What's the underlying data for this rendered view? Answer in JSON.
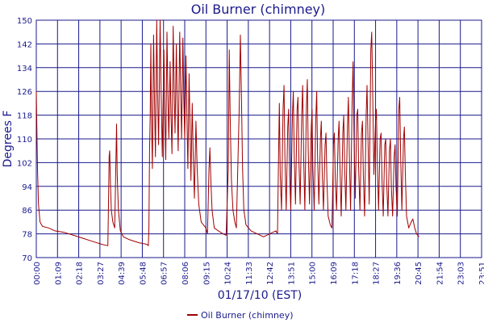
{
  "chart_data": {
    "type": "line",
    "title": "Oil Burner (chimney)",
    "xlabel": "01/17/10 (EST)",
    "ylabel": "Degrees F",
    "x_tick_labels": [
      "00:00",
      "01:09",
      "02:18",
      "03:27",
      "04:39",
      "05:48",
      "06:57",
      "08:06",
      "09:15",
      "10:24",
      "11:33",
      "12:42",
      "13:51",
      "15:00",
      "16:09",
      "17:18",
      "18:27",
      "19:36",
      "20:45",
      "21:54",
      "23:03",
      "23:51"
    ],
    "x_range_minutes": [
      0,
      1431
    ],
    "xlim_labels": [
      "00:00",
      "23:51"
    ],
    "y_ticks": [
      70,
      78,
      86,
      94,
      102,
      110,
      118,
      126,
      134,
      142,
      150
    ],
    "ylim": [
      70,
      150
    ],
    "grid": true,
    "legend_position": "bottom",
    "series": [
      {
        "name": "Oil Burner (chimney)",
        "color": "#a00000",
        "points": [
          [
            0,
            126
          ],
          [
            2,
            112
          ],
          [
            4,
            100
          ],
          [
            7,
            88
          ],
          [
            12,
            82
          ],
          [
            20,
            80.5
          ],
          [
            40,
            80
          ],
          [
            60,
            79
          ],
          [
            90,
            78.5
          ],
          [
            120,
            77.5
          ],
          [
            150,
            76.5
          ],
          [
            180,
            75.5
          ],
          [
            210,
            74.5
          ],
          [
            230,
            74
          ],
          [
            232,
            88
          ],
          [
            234,
            104
          ],
          [
            236,
            106
          ],
          [
            238,
            96
          ],
          [
            241,
            86
          ],
          [
            246,
            82
          ],
          [
            252,
            80
          ],
          [
            256,
            104
          ],
          [
            258,
            115
          ],
          [
            260,
            98
          ],
          [
            264,
            86
          ],
          [
            270,
            79
          ],
          [
            280,
            77
          ],
          [
            300,
            76
          ],
          [
            330,
            75
          ],
          [
            355,
            74.5
          ],
          [
            360,
            74
          ],
          [
            362,
            80
          ],
          [
            364,
            106
          ],
          [
            366,
            118
          ],
          [
            368,
            142
          ],
          [
            370,
            120
          ],
          [
            373,
            100
          ],
          [
            377,
            145
          ],
          [
            380,
            122
          ],
          [
            383,
            104
          ],
          [
            387,
            150
          ],
          [
            390,
            125
          ],
          [
            393,
            108
          ],
          [
            398,
            150
          ],
          [
            401,
            126
          ],
          [
            405,
            104
          ],
          [
            410,
            140
          ],
          [
            413,
            120
          ],
          [
            416,
            103
          ],
          [
            420,
            146
          ],
          [
            423,
            124
          ],
          [
            426,
            110
          ],
          [
            430,
            136
          ],
          [
            433,
            118
          ],
          [
            436,
            105
          ],
          [
            440,
            148
          ],
          [
            443,
            126
          ],
          [
            446,
            112
          ],
          [
            450,
            142
          ],
          [
            453,
            122
          ],
          [
            456,
            106
          ],
          [
            461,
            146
          ],
          [
            464,
            126
          ],
          [
            467,
            110
          ],
          [
            471,
            144
          ],
          [
            474,
            124
          ],
          [
            477,
            110
          ],
          [
            481,
            138
          ],
          [
            484,
            118
          ],
          [
            487,
            100
          ],
          [
            491,
            132
          ],
          [
            494,
            114
          ],
          [
            497,
            96
          ],
          [
            501,
            122
          ],
          [
            504,
            106
          ],
          [
            508,
            90
          ],
          [
            513,
            116
          ],
          [
            517,
            100
          ],
          [
            522,
            88
          ],
          [
            530,
            82
          ],
          [
            545,
            80
          ],
          [
            550,
            78
          ],
          [
            555,
            100
          ],
          [
            558,
            107
          ],
          [
            561,
            96
          ],
          [
            565,
            86
          ],
          [
            572,
            80
          ],
          [
            585,
            79
          ],
          [
            600,
            78
          ],
          [
            610,
            77.5
          ],
          [
            617,
            100
          ],
          [
            620,
            140
          ],
          [
            623,
            118
          ],
          [
            627,
            96
          ],
          [
            632,
            86
          ],
          [
            638,
            82
          ],
          [
            643,
            80
          ],
          [
            652,
            120
          ],
          [
            656,
            145
          ],
          [
            659,
            126
          ],
          [
            663,
            100
          ],
          [
            667,
            86
          ],
          [
            674,
            81
          ],
          [
            690,
            79
          ],
          [
            710,
            78
          ],
          [
            730,
            77
          ],
          [
            750,
            78
          ],
          [
            770,
            79
          ],
          [
            775,
            78
          ],
          [
            778,
            100
          ],
          [
            781,
            122
          ],
          [
            784,
            98
          ],
          [
            788,
            86
          ],
          [
            793,
            120
          ],
          [
            796,
            128
          ],
          [
            799,
            104
          ],
          [
            803,
            86
          ],
          [
            808,
            114
          ],
          [
            811,
            120
          ],
          [
            814,
            98
          ],
          [
            818,
            86
          ],
          [
            823,
            118
          ],
          [
            826,
            126
          ],
          [
            829,
            104
          ],
          [
            833,
            88
          ],
          [
            838,
            120
          ],
          [
            841,
            124
          ],
          [
            844,
            102
          ],
          [
            848,
            88
          ],
          [
            853,
            118
          ],
          [
            856,
            128
          ],
          [
            859,
            104
          ],
          [
            863,
            86
          ],
          [
            868,
            120
          ],
          [
            871,
            130
          ],
          [
            874,
            106
          ],
          [
            878,
            88
          ],
          [
            883,
            112
          ],
          [
            886,
            120
          ],
          [
            889,
            100
          ],
          [
            893,
            86
          ],
          [
            898,
            116
          ],
          [
            901,
            126
          ],
          [
            904,
            104
          ],
          [
            908,
            88
          ],
          [
            913,
            110
          ],
          [
            916,
            116
          ],
          [
            919,
            98
          ],
          [
            923,
            86
          ],
          [
            928,
            108
          ],
          [
            931,
            112
          ],
          [
            934,
            96
          ],
          [
            938,
            84
          ],
          [
            945,
            81
          ],
          [
            950,
            80
          ],
          [
            955,
            108
          ],
          [
            958,
            112
          ],
          [
            961,
            96
          ],
          [
            965,
            86
          ],
          [
            970,
            110
          ],
          [
            973,
            116
          ],
          [
            976,
            100
          ],
          [
            980,
            84
          ],
          [
            985,
            112
          ],
          [
            988,
            118
          ],
          [
            991,
            100
          ],
          [
            995,
            86
          ],
          [
            1000,
            114
          ],
          [
            1003,
            124
          ],
          [
            1006,
            104
          ],
          [
            1010,
            86
          ],
          [
            1015,
            122
          ],
          [
            1018,
            136
          ],
          [
            1021,
            112
          ],
          [
            1025,
            90
          ],
          [
            1030,
            118
          ],
          [
            1033,
            120
          ],
          [
            1036,
            100
          ],
          [
            1040,
            86
          ],
          [
            1045,
            112
          ],
          [
            1048,
            116
          ],
          [
            1051,
            98
          ],
          [
            1055,
            84
          ],
          [
            1060,
            118
          ],
          [
            1063,
            128
          ],
          [
            1066,
            110
          ],
          [
            1070,
            88
          ],
          [
            1075,
            140
          ],
          [
            1078,
            146
          ],
          [
            1081,
            126
          ],
          [
            1085,
            98
          ],
          [
            1090,
            116
          ],
          [
            1093,
            120
          ],
          [
            1096,
            102
          ],
          [
            1100,
            86
          ],
          [
            1105,
            110
          ],
          [
            1108,
            112
          ],
          [
            1111,
            96
          ],
          [
            1115,
            84
          ],
          [
            1120,
            108
          ],
          [
            1123,
            110
          ],
          [
            1126,
            96
          ],
          [
            1130,
            84
          ],
          [
            1135,
            106
          ],
          [
            1138,
            110
          ],
          [
            1141,
            94
          ],
          [
            1145,
            84
          ],
          [
            1150,
            104
          ],
          [
            1153,
            108
          ],
          [
            1156,
            94
          ],
          [
            1160,
            84
          ],
          [
            1165,
            120
          ],
          [
            1168,
            124
          ],
          [
            1171,
            104
          ],
          [
            1175,
            86
          ],
          [
            1180,
            110
          ],
          [
            1183,
            114
          ],
          [
            1186,
            98
          ],
          [
            1190,
            84
          ],
          [
            1197,
            80
          ],
          [
            1205,
            82
          ],
          [
            1210,
            83
          ],
          [
            1216,
            80
          ],
          [
            1222,
            78
          ],
          [
            1230,
            77
          ]
        ]
      }
    ]
  }
}
